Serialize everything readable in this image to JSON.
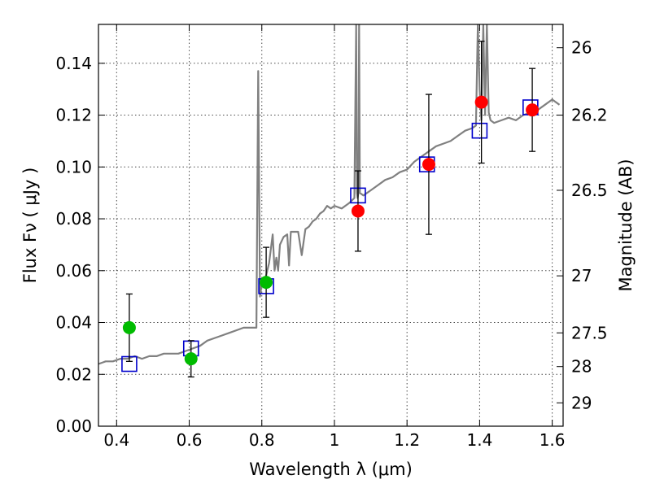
{
  "chart_data": {
    "type": "scatter",
    "title": "",
    "xlabel": "Wavelength  λ (μm)",
    "ylabel": "Flux  Fν  ( μJy )",
    "ylabel_right": "Magnitude (AB)",
    "xlim": [
      0.35,
      1.63
    ],
    "ylim": [
      0.0,
      0.155
    ],
    "grid": true,
    "x_ticks": [
      0.4,
      0.6,
      0.8,
      1.0,
      1.2,
      1.4,
      1.6
    ],
    "x_tick_labels": [
      "0.4",
      "0.6",
      "0.8",
      "1",
      "1.2",
      "1.4",
      "1.6"
    ],
    "y_ticks": [
      0.0,
      0.02,
      0.04,
      0.06,
      0.08,
      0.1,
      0.12,
      0.14
    ],
    "y_tick_labels": [
      "0.00",
      "0.02",
      "0.04",
      "0.06",
      "0.08",
      "0.10",
      "0.12",
      "0.14"
    ],
    "right_ticks": [
      {
        "label": "26",
        "flux": 0.146
      },
      {
        "label": "26.2",
        "flux": 0.12
      },
      {
        "label": "26.5",
        "flux": 0.091
      },
      {
        "label": "27",
        "flux": 0.058
      },
      {
        "label": "27.5",
        "flux": 0.036
      },
      {
        "label": "28",
        "flux": 0.023
      },
      {
        "label": "29",
        "flux": 0.009
      }
    ],
    "series": [
      {
        "name": "model spectrum",
        "kind": "line",
        "color": "#808080",
        "x": [
          0.35,
          0.37,
          0.39,
          0.41,
          0.43,
          0.45,
          0.47,
          0.49,
          0.51,
          0.53,
          0.55,
          0.57,
          0.59,
          0.61,
          0.63,
          0.65,
          0.67,
          0.69,
          0.71,
          0.73,
          0.75,
          0.77,
          0.785,
          0.79,
          0.795,
          0.8,
          0.805,
          0.81,
          0.82,
          0.83,
          0.835,
          0.84,
          0.845,
          0.85,
          0.86,
          0.87,
          0.875,
          0.88,
          0.89,
          0.9,
          0.91,
          0.92,
          0.93,
          0.94,
          0.95,
          0.96,
          0.97,
          0.98,
          0.99,
          1.0,
          1.02,
          1.04,
          1.055,
          1.06,
          1.062,
          1.064,
          1.066,
          1.068,
          1.07,
          1.08,
          1.1,
          1.12,
          1.14,
          1.16,
          1.18,
          1.2,
          1.22,
          1.24,
          1.26,
          1.28,
          1.3,
          1.32,
          1.34,
          1.36,
          1.38,
          1.39,
          1.395,
          1.4,
          1.405,
          1.41,
          1.415,
          1.42,
          1.425,
          1.43,
          1.44,
          1.46,
          1.48,
          1.5,
          1.52,
          1.54,
          1.56,
          1.58,
          1.6,
          1.62
        ],
        "y": [
          0.024,
          0.025,
          0.025,
          0.026,
          0.026,
          0.027,
          0.026,
          0.027,
          0.027,
          0.028,
          0.028,
          0.028,
          0.029,
          0.03,
          0.031,
          0.033,
          0.034,
          0.035,
          0.036,
          0.037,
          0.038,
          0.038,
          0.038,
          0.137,
          0.05,
          0.055,
          0.056,
          0.057,
          0.063,
          0.074,
          0.06,
          0.065,
          0.06,
          0.07,
          0.073,
          0.074,
          0.062,
          0.075,
          0.075,
          0.075,
          0.066,
          0.076,
          0.077,
          0.079,
          0.08,
          0.082,
          0.083,
          0.085,
          0.084,
          0.085,
          0.084,
          0.086,
          0.088,
          0.155,
          0.09,
          0.088,
          0.09,
          0.155,
          0.09,
          0.089,
          0.091,
          0.093,
          0.095,
          0.096,
          0.098,
          0.099,
          0.102,
          0.104,
          0.106,
          0.108,
          0.109,
          0.11,
          0.112,
          0.114,
          0.115,
          0.116,
          0.155,
          0.13,
          0.118,
          0.155,
          0.12,
          0.155,
          0.121,
          0.118,
          0.117,
          0.118,
          0.119,
          0.118,
          0.12,
          0.121,
          0.122,
          0.124,
          0.126,
          0.124
        ]
      },
      {
        "name": "model photometry",
        "kind": "open-square",
        "color": "#0000cc",
        "x": [
          0.435,
          0.605,
          0.812,
          1.065,
          1.255,
          1.4,
          1.54
        ],
        "y": [
          0.024,
          0.03,
          0.054,
          0.089,
          0.101,
          0.114,
          0.123
        ]
      },
      {
        "name": "observed (green)",
        "kind": "filled-circle",
        "color": "#00bb00",
        "x": [
          0.435,
          0.605,
          0.812
        ],
        "y": [
          0.038,
          0.026,
          0.0555
        ],
        "err": [
          0.013,
          0.007,
          0.0135
        ]
      },
      {
        "name": "observed (red)",
        "kind": "filled-circle",
        "color": "#ff0000",
        "x": [
          1.065,
          1.26,
          1.405,
          1.545
        ],
        "y": [
          0.083,
          0.101,
          0.125,
          0.122
        ],
        "err": [
          0.0155,
          0.027,
          0.0235,
          0.016
        ]
      }
    ]
  }
}
